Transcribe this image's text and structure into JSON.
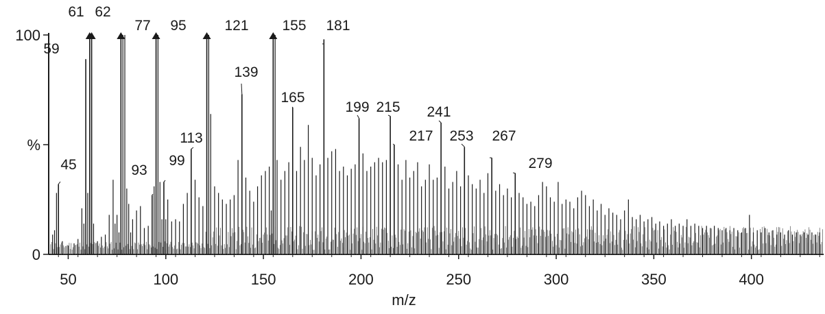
{
  "chart_data": {
    "type": "bar",
    "title": "",
    "xlabel": "m/z",
    "ylabel": "%",
    "xlim": [
      40,
      437
    ],
    "ylim": [
      0,
      100
    ],
    "x_ticks": [
      50,
      100,
      150,
      200,
      250,
      300,
      350,
      400
    ],
    "x_tick_labels": [
      "50",
      "100",
      "150",
      "200",
      "250",
      "300",
      "350",
      "400"
    ],
    "y_ticks": [
      0,
      50,
      100
    ],
    "y_tick_labels": [
      "0",
      "%",
      "100"
    ],
    "grid": false,
    "off_scale_marker": "triangle",
    "labeled_peaks": [
      {
        "mz": 45,
        "intensity": 32,
        "label": "45"
      },
      {
        "mz": 59,
        "intensity": 89,
        "label": "59"
      },
      {
        "mz": 61,
        "intensity": 100,
        "label": "61",
        "off_scale": true
      },
      {
        "mz": 62,
        "intensity": 100,
        "label": "62",
        "off_scale": true
      },
      {
        "mz": 77,
        "intensity": 100,
        "label": "77",
        "off_scale": true
      },
      {
        "mz": 93,
        "intensity": 27,
        "label": "93"
      },
      {
        "mz": 95,
        "intensity": 100,
        "label": "95",
        "off_scale": true
      },
      {
        "mz": 99,
        "intensity": 33,
        "label": "99"
      },
      {
        "mz": 113,
        "intensity": 48,
        "label": "113"
      },
      {
        "mz": 121,
        "intensity": 100,
        "label": "121",
        "off_scale": true
      },
      {
        "mz": 139,
        "intensity": 73,
        "label": "139"
      },
      {
        "mz": 155,
        "intensity": 100,
        "label": "155",
        "off_scale": true
      },
      {
        "mz": 165,
        "intensity": 67,
        "label": "165"
      },
      {
        "mz": 181,
        "intensity": 98,
        "label": "181"
      },
      {
        "mz": 199,
        "intensity": 62,
        "label": "199"
      },
      {
        "mz": 215,
        "intensity": 63,
        "label": "215"
      },
      {
        "mz": 217,
        "intensity": 50,
        "label": "217"
      },
      {
        "mz": 241,
        "intensity": 60,
        "label": "241"
      },
      {
        "mz": 253,
        "intensity": 49,
        "label": "253"
      },
      {
        "mz": 267,
        "intensity": 44,
        "label": "267"
      },
      {
        "mz": 279,
        "intensity": 37,
        "label": "279"
      }
    ],
    "other_peaks": [
      [
        42,
        9
      ],
      [
        43,
        11
      ],
      [
        44,
        28
      ],
      [
        47,
        6
      ],
      [
        50,
        4
      ],
      [
        53,
        5
      ],
      [
        55,
        7
      ],
      [
        57,
        21
      ],
      [
        58,
        14
      ],
      [
        60,
        28
      ],
      [
        63,
        14
      ],
      [
        65,
        6
      ],
      [
        67,
        8
      ],
      [
        69,
        9
      ],
      [
        71,
        18
      ],
      [
        73,
        34
      ],
      [
        74,
        14
      ],
      [
        75,
        18
      ],
      [
        76,
        10
      ],
      [
        78,
        100
      ],
      [
        79,
        100
      ],
      [
        80,
        30
      ],
      [
        81,
        23
      ],
      [
        82,
        10
      ],
      [
        83,
        16
      ],
      [
        85,
        20
      ],
      [
        87,
        22
      ],
      [
        89,
        12
      ],
      [
        91,
        13
      ],
      [
        94,
        31
      ],
      [
        96,
        100
      ],
      [
        97,
        33
      ],
      [
        98,
        16
      ],
      [
        100,
        16
      ],
      [
        101,
        25
      ],
      [
        103,
        15
      ],
      [
        105,
        16
      ],
      [
        107,
        15
      ],
      [
        109,
        23
      ],
      [
        111,
        28
      ],
      [
        115,
        34
      ],
      [
        117,
        26
      ],
      [
        119,
        22
      ],
      [
        122,
        100
      ],
      [
        123,
        64
      ],
      [
        125,
        31
      ],
      [
        127,
        28
      ],
      [
        129,
        25
      ],
      [
        131,
        23
      ],
      [
        133,
        25
      ],
      [
        135,
        27
      ],
      [
        137,
        43
      ],
      [
        141,
        35
      ],
      [
        143,
        29
      ],
      [
        145,
        24
      ],
      [
        147,
        31
      ],
      [
        149,
        36
      ],
      [
        151,
        38
      ],
      [
        153,
        40
      ],
      [
        154,
        20
      ],
      [
        156,
        100
      ],
      [
        157,
        43
      ],
      [
        159,
        34
      ],
      [
        161,
        38
      ],
      [
        163,
        42
      ],
      [
        167,
        38
      ],
      [
        169,
        49
      ],
      [
        171,
        43
      ],
      [
        173,
        59
      ],
      [
        175,
        44
      ],
      [
        177,
        36
      ],
      [
        179,
        41
      ],
      [
        183,
        44
      ],
      [
        185,
        47
      ],
      [
        187,
        48
      ],
      [
        189,
        38
      ],
      [
        191,
        40
      ],
      [
        193,
        36
      ],
      [
        195,
        39
      ],
      [
        197,
        41
      ],
      [
        201,
        46
      ],
      [
        203,
        38
      ],
      [
        205,
        40
      ],
      [
        207,
        42
      ],
      [
        209,
        44
      ],
      [
        211,
        42
      ],
      [
        213,
        43
      ],
      [
        219,
        41
      ],
      [
        221,
        34
      ],
      [
        223,
        43
      ],
      [
        225,
        35
      ],
      [
        227,
        38
      ],
      [
        229,
        42
      ],
      [
        231,
        31
      ],
      [
        233,
        34
      ],
      [
        235,
        41
      ],
      [
        237,
        34
      ],
      [
        239,
        35
      ],
      [
        243,
        40
      ],
      [
        245,
        30
      ],
      [
        247,
        33
      ],
      [
        249,
        38
      ],
      [
        251,
        31
      ],
      [
        255,
        36
      ],
      [
        257,
        32
      ],
      [
        259,
        30
      ],
      [
        261,
        34
      ],
      [
        263,
        28
      ],
      [
        265,
        37
      ],
      [
        269,
        29
      ],
      [
        271,
        32
      ],
      [
        273,
        27
      ],
      [
        275,
        30
      ],
      [
        277,
        26
      ],
      [
        281,
        28
      ],
      [
        283,
        26
      ],
      [
        285,
        23
      ],
      [
        287,
        24
      ],
      [
        289,
        22
      ],
      [
        291,
        27
      ],
      [
        293,
        33
      ],
      [
        295,
        31
      ],
      [
        297,
        26
      ],
      [
        299,
        24
      ],
      [
        301,
        33
      ],
      [
        303,
        23
      ],
      [
        305,
        25
      ],
      [
        307,
        24
      ],
      [
        309,
        21
      ],
      [
        311,
        26
      ],
      [
        313,
        29
      ],
      [
        315,
        27
      ],
      [
        317,
        22
      ],
      [
        319,
        25
      ],
      [
        321,
        20
      ],
      [
        323,
        23
      ],
      [
        325,
        18
      ],
      [
        327,
        21
      ],
      [
        329,
        19
      ],
      [
        331,
        18
      ],
      [
        333,
        16
      ],
      [
        335,
        20
      ],
      [
        337,
        25
      ],
      [
        339,
        17
      ],
      [
        341,
        16
      ],
      [
        343,
        18
      ],
      [
        345,
        15
      ],
      [
        347,
        16
      ],
      [
        349,
        17
      ],
      [
        351,
        14
      ],
      [
        353,
        15
      ],
      [
        355,
        13
      ],
      [
        357,
        14
      ],
      [
        359,
        16
      ],
      [
        361,
        13
      ],
      [
        363,
        14
      ],
      [
        365,
        13
      ],
      [
        367,
        16
      ],
      [
        369,
        13
      ],
      [
        371,
        14
      ],
      [
        373,
        13
      ],
      [
        375,
        12
      ],
      [
        377,
        13
      ],
      [
        379,
        12
      ],
      [
        381,
        13
      ],
      [
        383,
        12
      ],
      [
        385,
        11
      ],
      [
        387,
        12
      ],
      [
        389,
        11
      ],
      [
        391,
        12
      ],
      [
        393,
        11
      ],
      [
        395,
        10
      ],
      [
        397,
        12
      ],
      [
        399,
        18
      ],
      [
        401,
        10
      ],
      [
        403,
        11
      ],
      [
        405,
        10
      ],
      [
        407,
        12
      ],
      [
        409,
        10
      ],
      [
        411,
        11
      ],
      [
        413,
        9
      ],
      [
        415,
        10
      ],
      [
        417,
        9
      ],
      [
        419,
        11
      ],
      [
        421,
        9
      ],
      [
        423,
        10
      ],
      [
        425,
        9
      ],
      [
        427,
        10
      ],
      [
        429,
        9
      ],
      [
        431,
        10
      ],
      [
        433,
        9
      ],
      [
        435,
        10
      ]
    ]
  }
}
